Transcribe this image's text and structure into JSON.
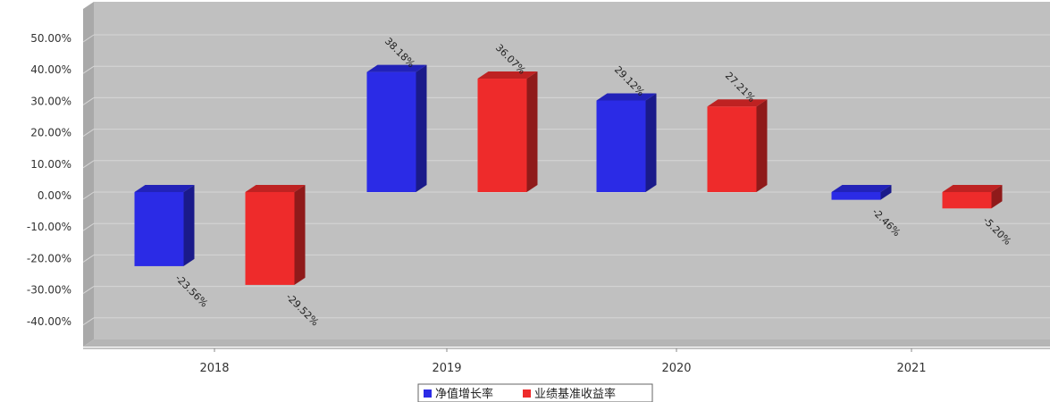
{
  "chart_data": {
    "type": "bar",
    "categories": [
      "2018",
      "2019",
      "2020",
      "2021"
    ],
    "series": [
      {
        "name": "净值增长率",
        "values": [
          -23.56,
          38.18,
          29.12,
          -2.46
        ],
        "labels": [
          "-23.56%",
          "38.18%",
          "29.12%",
          "-2.46%"
        ],
        "color": "#2b2be6"
      },
      {
        "name": "业绩基准收益率",
        "values": [
          -29.52,
          36.07,
          27.21,
          -5.2
        ],
        "labels": [
          "-29.52%",
          "36.07%",
          "27.21%",
          "-5.20%"
        ],
        "color": "#ee2b2b"
      }
    ],
    "ylim": [
      -50,
      50
    ],
    "yticks": [
      "50.00%",
      "40.00%",
      "30.00%",
      "20.00%",
      "10.00%",
      "0.00%",
      "-10.00%",
      "-20.00%",
      "-30.00%",
      "-40.00%"
    ],
    "ytick_values": [
      50,
      40,
      30,
      20,
      10,
      0,
      -10,
      -20,
      -30,
      -40
    ],
    "grid": true,
    "legend_position": "bottom",
    "plot_background": "#c0c0c0"
  }
}
